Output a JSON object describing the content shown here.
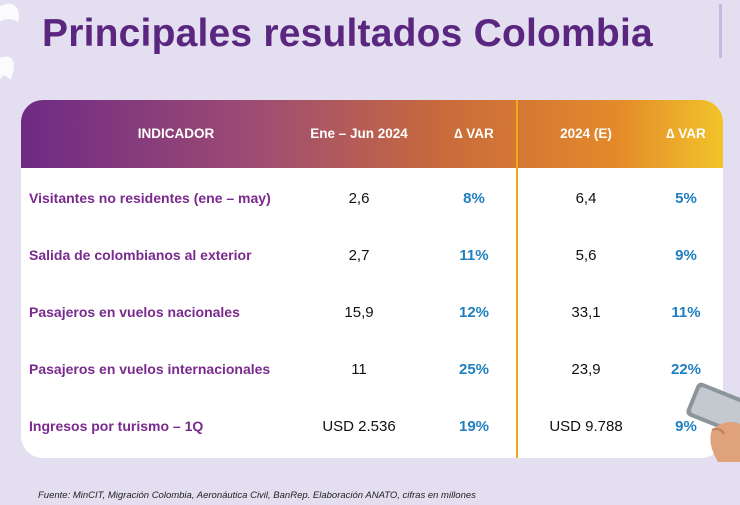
{
  "title": "Principales resultados Colombia",
  "table": {
    "headers": {
      "indicator": "INDICADOR",
      "period1": "Ene – Jun 2024",
      "var1": "∆ VAR",
      "period2": "2024 (E)",
      "var2": "∆ VAR"
    },
    "rows": [
      {
        "label": "Visitantes no residentes (ene – may)",
        "v1": "2,6",
        "d1": "8%",
        "v2": "6,4",
        "d2": "5%"
      },
      {
        "label": "Salida de colombianos al exterior",
        "v1": "2,7",
        "d1": "11%",
        "v2": "5,6",
        "d2": "9%"
      },
      {
        "label": "Pasajeros en vuelos nacionales",
        "v1": "15,9",
        "d1": "12%",
        "v2": "33,1",
        "d2": "11%"
      },
      {
        "label": "Pasajeros en vuelos internacionales",
        "v1": "11",
        "d1": "25%",
        "v2": "23,9",
        "d2": "22%"
      },
      {
        "label": "Ingresos por turismo – 1Q",
        "v1": "USD 2.536",
        "d1": "19%",
        "v2": "USD 9.788",
        "d2": "9%"
      }
    ]
  },
  "source": "Fuente: MinCIT, Migración Colombia, Aeronáutica Civil, BanRep. Elaboración ANATO, cifras en millones",
  "colors": {
    "title": "#5a2680",
    "label": "#7a2a8e",
    "percent": "#1f7fc0",
    "divider": "#f2a81d"
  }
}
